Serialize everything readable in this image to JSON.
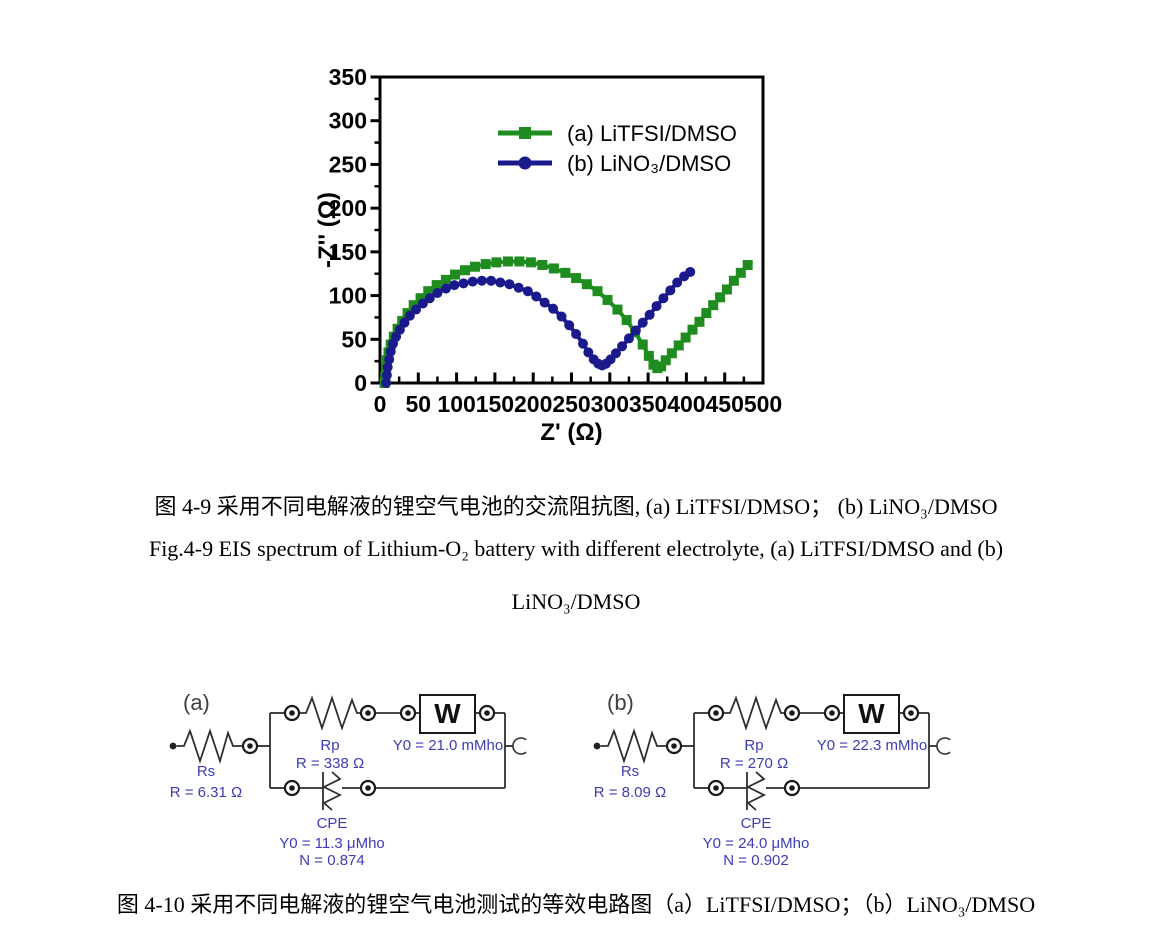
{
  "chart_data": {
    "type": "line",
    "title": "",
    "xlabel": "Z' (Ω)",
    "ylabel": "-Z'' (Ω)",
    "xlim": [
      0,
      500
    ],
    "ylim": [
      0,
      350
    ],
    "xtick_major": 50,
    "xtick_minor": 25,
    "ytick_major": 50,
    "ytick_minor": 25,
    "grid": "off",
    "legend_position": "top-center-inside",
    "series": [
      {
        "name": "(a)  LiTFSI/DMSO",
        "color": "#1f8c1f",
        "marker": "square",
        "points": [
          [
            6,
            0
          ],
          [
            7,
            8
          ],
          [
            8,
            17
          ],
          [
            9,
            26
          ],
          [
            11,
            35
          ],
          [
            14,
            44
          ],
          [
            18,
            53
          ],
          [
            23,
            62
          ],
          [
            29,
            71
          ],
          [
            36,
            80
          ],
          [
            44,
            89
          ],
          [
            53,
            97
          ],
          [
            63,
            105
          ],
          [
            74,
            112
          ],
          [
            86,
            118
          ],
          [
            98,
            124
          ],
          [
            111,
            129
          ],
          [
            124,
            133
          ],
          [
            138,
            136
          ],
          [
            152,
            138
          ],
          [
            167,
            139
          ],
          [
            182,
            139
          ],
          [
            197,
            138
          ],
          [
            212,
            135
          ],
          [
            227,
            131
          ],
          [
            242,
            126
          ],
          [
            256,
            120
          ],
          [
            270,
            113
          ],
          [
            284,
            105
          ],
          [
            297,
            95
          ],
          [
            310,
            84
          ],
          [
            322,
            72
          ],
          [
            333,
            58
          ],
          [
            343,
            44
          ],
          [
            351,
            31
          ],
          [
            357,
            21
          ],
          [
            362,
            17
          ],
          [
            367,
            19
          ],
          [
            373,
            26
          ],
          [
            381,
            34
          ],
          [
            390,
            43
          ],
          [
            399,
            52
          ],
          [
            408,
            61
          ],
          [
            417,
            70
          ],
          [
            426,
            80
          ],
          [
            435,
            89
          ],
          [
            444,
            98
          ],
          [
            453,
            107
          ],
          [
            462,
            117
          ],
          [
            471,
            126
          ],
          [
            480,
            135
          ]
        ]
      },
      {
        "name": "(b)  LiNO₃/DMSO",
        "color": "#1a1a8c",
        "marker": "circle",
        "points": [
          [
            8,
            0
          ],
          [
            9,
            9
          ],
          [
            10,
            18
          ],
          [
            12,
            27
          ],
          [
            14,
            36
          ],
          [
            17,
            45
          ],
          [
            21,
            53
          ],
          [
            26,
            61
          ],
          [
            32,
            69
          ],
          [
            39,
            77
          ],
          [
            47,
            84
          ],
          [
            56,
            91
          ],
          [
            65,
            97
          ],
          [
            75,
            103
          ],
          [
            86,
            108
          ],
          [
            97,
            112
          ],
          [
            109,
            114
          ],
          [
            121,
            116
          ],
          [
            133,
            117
          ],
          [
            145,
            117
          ],
          [
            157,
            115
          ],
          [
            169,
            113
          ],
          [
            181,
            109
          ],
          [
            193,
            105
          ],
          [
            204,
            99
          ],
          [
            215,
            92
          ],
          [
            226,
            85
          ],
          [
            237,
            76
          ],
          [
            247,
            66
          ],
          [
            256,
            56
          ],
          [
            265,
            45
          ],
          [
            272,
            35
          ],
          [
            279,
            27
          ],
          [
            285,
            22
          ],
          [
            290,
            20
          ],
          [
            295,
            22
          ],
          [
            301,
            27
          ],
          [
            308,
            34
          ],
          [
            316,
            42
          ],
          [
            325,
            51
          ],
          [
            334,
            60
          ],
          [
            343,
            69
          ],
          [
            352,
            78
          ],
          [
            361,
            88
          ],
          [
            370,
            97
          ],
          [
            379,
            106
          ],
          [
            388,
            115
          ],
          [
            397,
            122
          ],
          [
            405,
            127
          ]
        ]
      }
    ]
  },
  "captions": {
    "fig9_zh": "图 4-9 采用不同电解液的锂空气电池的交流阻抗图, (a) LiTFSI/DMSO； (b) LiNO₃/DMSO",
    "fig9_en_line1": "Fig.4-9 EIS spectrum of Lithium-O₂ battery with different electrolyte, (a) LiTFSI/DMSO and (b)",
    "fig9_en_line2": "LiNO₃/DMSO",
    "fig10_zh": "图 4-10 采用不同电解液的锂空气电池测试的等效电路图（a）LiTFSI/DMSO；（b）LiNO₃/DMSO"
  },
  "circuits": [
    {
      "label": "(a)",
      "rs_name": "Rs",
      "rs_value": "R = 6.31 Ω",
      "rp_name": "Rp",
      "rp_value": "R = 338 Ω",
      "w_symbol": "W",
      "w_value": "Y0 = 21.0 mMho",
      "cpe_name": "CPE",
      "cpe_y0": "Y0 = 11.3 μMho",
      "cpe_n": "N = 0.874"
    },
    {
      "label": "(b)",
      "rs_name": "Rs",
      "rs_value": "R = 8.09 Ω",
      "rp_name": "Rp",
      "rp_value": "R = 270 Ω",
      "w_symbol": "W",
      "w_value": "Y0 = 22.3 mMho",
      "cpe_name": "CPE",
      "cpe_y0": "Y0 = 24.0 μMho",
      "cpe_n": "N = 0.902"
    }
  ],
  "colors": {
    "axis": "#000000",
    "series_a_green": "#1f8c1f",
    "series_b_blue": "#1a1a8c",
    "circuit_line": "#2e2e2e",
    "circuit_label": "#3c3cb4",
    "caption_text": "#000000"
  }
}
